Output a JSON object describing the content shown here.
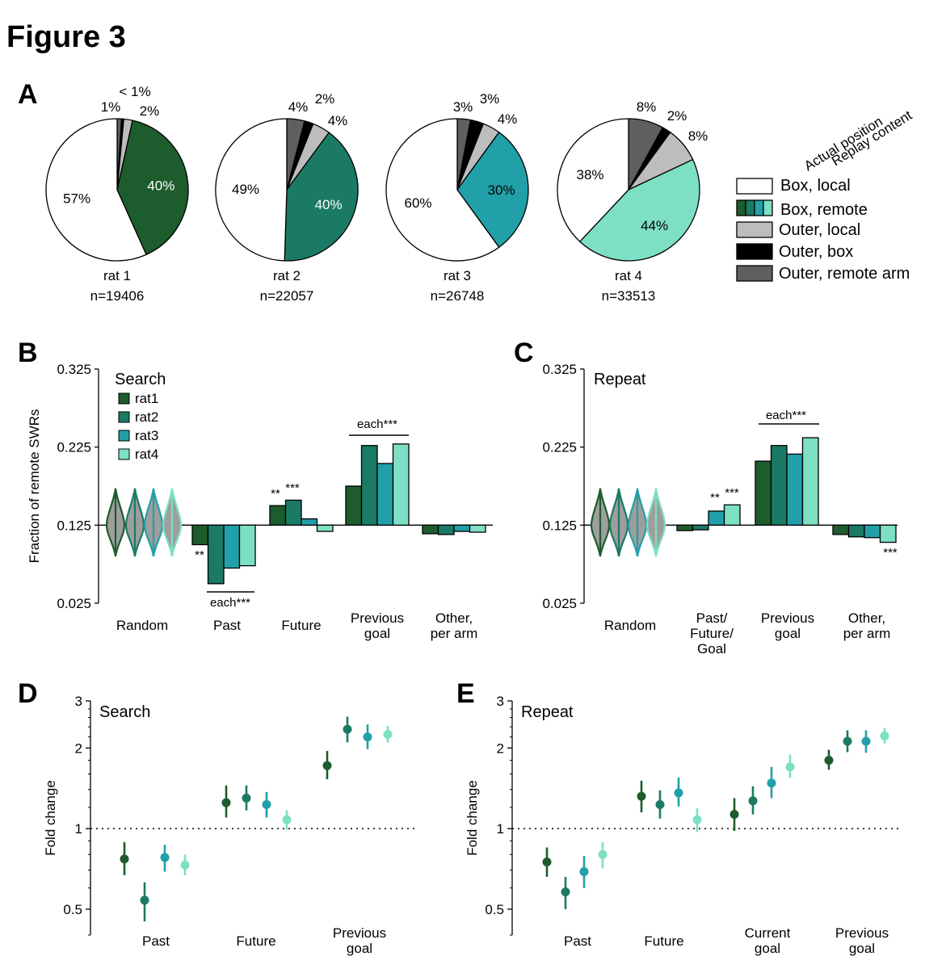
{
  "figure_title": "Figure 3",
  "panel_labels": {
    "A": "A",
    "B": "B",
    "C": "C",
    "D": "D",
    "E": "E"
  },
  "colors": {
    "rat1": "#1d5c2c",
    "rat2": "#1b7a63",
    "rat3": "#21a0a9",
    "rat4": "#7ddfc4",
    "box_local": "#ffffff",
    "outer_local": "#bdbdbd",
    "outer_box": "#000000",
    "outer_remote": "#5f5f5f",
    "violin_fill": "#9e9e9e"
  },
  "legend_a": {
    "header_1": "Actual position",
    "header_2": "Replay content",
    "items": [
      "Box, local",
      "Box, remote",
      "Outer, local",
      "Outer, box",
      "Outer, remote arm"
    ]
  },
  "chart_data": [
    {
      "panel": "A",
      "type": "pie",
      "pies": [
        {
          "name": "rat 1",
          "n": "n=19406",
          "slices": [
            {
              "category": "Box, remote",
              "value": 40,
              "label": "40%"
            },
            {
              "category": "Box, local",
              "value": 57,
              "label": "57%"
            },
            {
              "category": "Outer, remote arm",
              "value": 1,
              "label": "1%"
            },
            {
              "category": "Outer, box",
              "value": 0.5,
              "label": "< 1%"
            },
            {
              "category": "Outer, local",
              "value": 2,
              "label": "2%"
            }
          ]
        },
        {
          "name": "rat 2",
          "n": "n=22057",
          "slices": [
            {
              "category": "Box, remote",
              "value": 40,
              "label": "40%"
            },
            {
              "category": "Box, local",
              "value": 49,
              "label": "49%"
            },
            {
              "category": "Outer, remote arm",
              "value": 4,
              "label": "4%"
            },
            {
              "category": "Outer, box",
              "value": 2,
              "label": "2%"
            },
            {
              "category": "Outer, local",
              "value": 4,
              "label": "4%"
            }
          ]
        },
        {
          "name": "rat 3",
          "n": "n=26748",
          "slices": [
            {
              "category": "Box, remote",
              "value": 30,
              "label": "30%"
            },
            {
              "category": "Box, local",
              "value": 60,
              "label": "60%"
            },
            {
              "category": "Outer, remote arm",
              "value": 3,
              "label": "3%"
            },
            {
              "category": "Outer, box",
              "value": 3,
              "label": "3%"
            },
            {
              "category": "Outer, local",
              "value": 4,
              "label": "4%"
            }
          ]
        },
        {
          "name": "rat 4",
          "n": "n=33513",
          "slices": [
            {
              "category": "Box, remote",
              "value": 44,
              "label": "44%"
            },
            {
              "category": "Box, local",
              "value": 38,
              "label": "38%"
            },
            {
              "category": "Outer, remote arm",
              "value": 8,
              "label": "8%"
            },
            {
              "category": "Outer, box",
              "value": 2,
              "label": "2%"
            },
            {
              "category": "Outer, local",
              "value": 8,
              "label": "8%"
            }
          ]
        }
      ]
    },
    {
      "panel": "B",
      "type": "bar",
      "title": "Search",
      "ylabel": "Fraction of remote SWRs",
      "ylim": [
        0.025,
        0.325
      ],
      "yticks": [
        "0.325",
        "0.225",
        "0.125",
        "0.025"
      ],
      "baseline": 0.125,
      "legend": [
        "rat1",
        "rat2",
        "rat3",
        "rat4"
      ],
      "random_violins": {
        "category": "Random",
        "median": 0.125
      },
      "categories": [
        "Past",
        "Future",
        "Previous goal",
        "Other, per arm"
      ],
      "category_labels": [
        [
          "Random"
        ],
        [
          "Past"
        ],
        [
          "Future"
        ],
        [
          "Previous",
          "goal"
        ],
        [
          "Other,",
          "per arm"
        ]
      ],
      "series": [
        {
          "name": "rat1",
          "values": [
            0.1,
            0.15,
            0.175,
            0.114
          ]
        },
        {
          "name": "rat2",
          "values": [
            0.05,
            0.157,
            0.227,
            0.113
          ]
        },
        {
          "name": "rat3",
          "values": [
            0.07,
            0.133,
            0.204,
            0.117
          ]
        },
        {
          "name": "rat4",
          "values": [
            0.073,
            0.117,
            0.229,
            0.116
          ]
        }
      ],
      "annotations": {
        "past_single": "**",
        "past_each": "each***",
        "future_1": "**",
        "future_2": "***",
        "prev_each": "each***"
      }
    },
    {
      "panel": "C",
      "type": "bar",
      "title": "Repeat",
      "ylim": [
        0.025,
        0.325
      ],
      "yticks": [
        "0.325",
        "0.225",
        "0.125",
        "0.025"
      ],
      "baseline": 0.125,
      "random_violins": {
        "category": "Random",
        "median": 0.125
      },
      "categories": [
        "Past/Future/Goal",
        "Previous goal",
        "Other, per arm"
      ],
      "category_labels": [
        [
          "Random"
        ],
        [
          "Past/",
          "Future/",
          "Goal"
        ],
        [
          "Previous",
          "goal"
        ],
        [
          "Other,",
          "per arm"
        ]
      ],
      "series": [
        {
          "name": "rat1",
          "values": [
            0.118,
            0.207,
            0.113
          ]
        },
        {
          "name": "rat2",
          "values": [
            0.119,
            0.227,
            0.11
          ]
        },
        {
          "name": "rat3",
          "values": [
            0.143,
            0.216,
            0.109
          ]
        },
        {
          "name": "rat4",
          "values": [
            0.151,
            0.237,
            0.103
          ]
        }
      ],
      "annotations": {
        "pfg_1": "**",
        "pfg_2": "***",
        "prev_each": "each***",
        "other": "***"
      }
    },
    {
      "panel": "D",
      "type": "scatter",
      "title": "Search",
      "ylabel": "Fold change",
      "yscale": "log",
      "ylim": [
        0.4,
        3
      ],
      "yticks": [
        "3",
        "2",
        "1",
        "0.5"
      ],
      "reference": 1,
      "category_labels": [
        [
          "Past"
        ],
        [
          "Future"
        ],
        [
          "Previous",
          "goal"
        ]
      ],
      "series": [
        {
          "name": "rat1",
          "values": [
            0.77,
            1.25,
            1.72
          ],
          "low": [
            0.67,
            1.1,
            1.53
          ],
          "high": [
            0.89,
            1.45,
            1.95
          ]
        },
        {
          "name": "rat2",
          "values": [
            0.54,
            1.3,
            2.35
          ],
          "low": [
            0.45,
            1.17,
            2.1
          ],
          "high": [
            0.63,
            1.45,
            2.62
          ]
        },
        {
          "name": "rat3",
          "values": [
            0.78,
            1.23,
            2.2
          ],
          "low": [
            0.69,
            1.1,
            1.98
          ],
          "high": [
            0.87,
            1.37,
            2.45
          ]
        },
        {
          "name": "rat4",
          "values": [
            0.73,
            1.08,
            2.25
          ],
          "low": [
            0.67,
            0.99,
            2.1
          ],
          "high": [
            0.8,
            1.17,
            2.42
          ]
        }
      ]
    },
    {
      "panel": "E",
      "type": "scatter",
      "title": "Repeat",
      "ylabel": "Fold change",
      "yscale": "log",
      "ylim": [
        0.4,
        3
      ],
      "yticks": [
        "3",
        "2",
        "1",
        "0.5"
      ],
      "reference": 1,
      "category_labels": [
        [
          "Past"
        ],
        [
          "Future"
        ],
        [
          "Current",
          "goal"
        ],
        [
          "Previous",
          "goal"
        ]
      ],
      "series": [
        {
          "name": "rat1",
          "values": [
            0.75,
            1.32,
            1.13,
            1.8
          ],
          "low": [
            0.66,
            1.15,
            0.98,
            1.66
          ],
          "high": [
            0.85,
            1.51,
            1.3,
            1.97
          ]
        },
        {
          "name": "rat2",
          "values": [
            0.58,
            1.23,
            1.27,
            2.12
          ],
          "low": [
            0.5,
            1.09,
            1.13,
            1.93
          ],
          "high": [
            0.66,
            1.39,
            1.44,
            2.33
          ]
        },
        {
          "name": "rat3",
          "values": [
            0.69,
            1.36,
            1.48,
            2.12
          ],
          "low": [
            0.6,
            1.21,
            1.3,
            1.92
          ],
          "high": [
            0.79,
            1.55,
            1.7,
            2.33
          ]
        },
        {
          "name": "rat4",
          "values": [
            0.8,
            1.08,
            1.7,
            2.22
          ],
          "low": [
            0.71,
            0.97,
            1.55,
            2.08
          ],
          "high": [
            0.89,
            1.19,
            1.89,
            2.38
          ]
        }
      ]
    }
  ]
}
